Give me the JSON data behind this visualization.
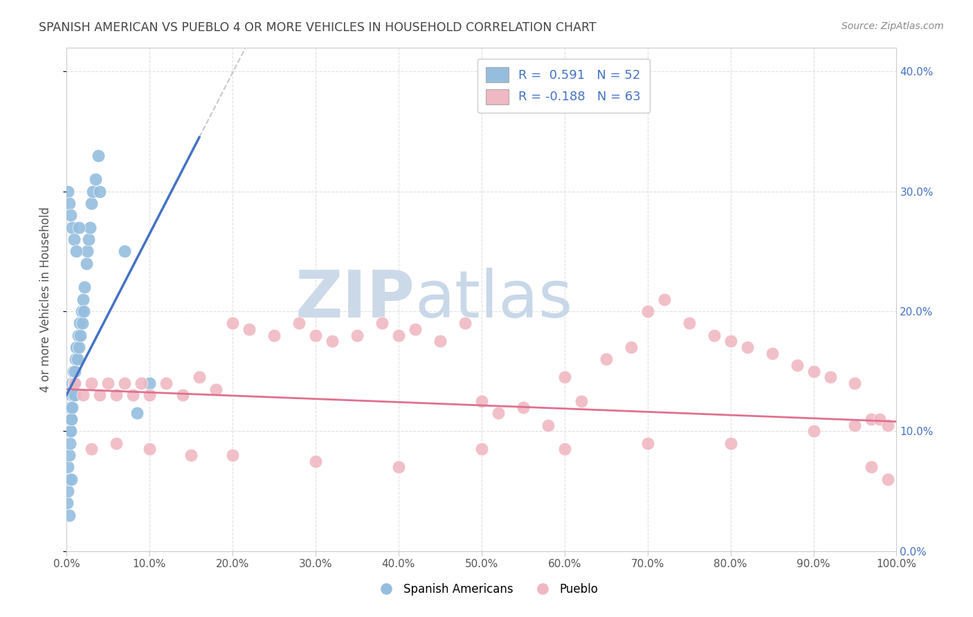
{
  "title": "SPANISH AMERICAN VS PUEBLO 4 OR MORE VEHICLES IN HOUSEHOLD CORRELATION CHART",
  "source": "Source: ZipAtlas.com",
  "ylabel": "4 or more Vehicles in Household",
  "xlim": [
    0,
    1.0
  ],
  "ylim": [
    0,
    0.42
  ],
  "xticks": [
    0.0,
    0.1,
    0.2,
    0.3,
    0.4,
    0.5,
    0.6,
    0.7,
    0.8,
    0.9,
    1.0
  ],
  "yticks": [
    0.0,
    0.1,
    0.2,
    0.3,
    0.4
  ],
  "blue_color": "#95bede",
  "pink_color": "#f0b8c2",
  "blue_line_color": "#4472c4",
  "pink_line_color": "#e07090",
  "dash_line_color": "#bbbbbb",
  "watermark_zip_color": "#ccd9e8",
  "watermark_atlas_color": "#c8d8e8",
  "legend_text_color": "#4472c4",
  "title_color": "#444444",
  "source_color": "#888888",
  "ylabel_color": "#555555",
  "grid_color": "#e0e0e0",
  "right_tick_color": "#4472c4",
  "blue_x": [
    0.001,
    0.002,
    0.002,
    0.003,
    0.003,
    0.004,
    0.004,
    0.005,
    0.005,
    0.005,
    0.006,
    0.006,
    0.007,
    0.007,
    0.008,
    0.008,
    0.009,
    0.01,
    0.01,
    0.011,
    0.012,
    0.013,
    0.014,
    0.015,
    0.016,
    0.017,
    0.018,
    0.019,
    0.02,
    0.021,
    0.022,
    0.024,
    0.025,
    0.027,
    0.028,
    0.03,
    0.032,
    0.035,
    0.038,
    0.04,
    0.002,
    0.003,
    0.005,
    0.007,
    0.009,
    0.012,
    0.015,
    0.07,
    0.085,
    0.1,
    0.003,
    0.006
  ],
  "blue_y": [
    0.04,
    0.05,
    0.07,
    0.06,
    0.08,
    0.09,
    0.1,
    0.1,
    0.11,
    0.12,
    0.11,
    0.13,
    0.12,
    0.14,
    0.13,
    0.15,
    0.14,
    0.13,
    0.15,
    0.16,
    0.17,
    0.16,
    0.18,
    0.17,
    0.19,
    0.18,
    0.2,
    0.19,
    0.21,
    0.2,
    0.22,
    0.24,
    0.25,
    0.26,
    0.27,
    0.29,
    0.3,
    0.31,
    0.33,
    0.3,
    0.3,
    0.29,
    0.28,
    0.27,
    0.26,
    0.25,
    0.27,
    0.25,
    0.115,
    0.14,
    0.03,
    0.06
  ],
  "pink_x": [
    0.01,
    0.02,
    0.03,
    0.04,
    0.05,
    0.06,
    0.07,
    0.08,
    0.09,
    0.1,
    0.12,
    0.14,
    0.16,
    0.18,
    0.2,
    0.22,
    0.25,
    0.28,
    0.3,
    0.32,
    0.35,
    0.38,
    0.4,
    0.42,
    0.45,
    0.48,
    0.5,
    0.52,
    0.55,
    0.58,
    0.6,
    0.62,
    0.65,
    0.68,
    0.7,
    0.72,
    0.75,
    0.78,
    0.8,
    0.82,
    0.85,
    0.88,
    0.9,
    0.92,
    0.95,
    0.97,
    0.98,
    0.99,
    0.03,
    0.06,
    0.1,
    0.15,
    0.2,
    0.3,
    0.4,
    0.5,
    0.6,
    0.7,
    0.8,
    0.9,
    0.95,
    0.97,
    0.99
  ],
  "pink_y": [
    0.14,
    0.13,
    0.14,
    0.13,
    0.14,
    0.13,
    0.14,
    0.13,
    0.14,
    0.13,
    0.14,
    0.13,
    0.145,
    0.135,
    0.19,
    0.185,
    0.18,
    0.19,
    0.18,
    0.175,
    0.18,
    0.19,
    0.18,
    0.185,
    0.175,
    0.19,
    0.125,
    0.115,
    0.12,
    0.105,
    0.145,
    0.125,
    0.16,
    0.17,
    0.2,
    0.21,
    0.19,
    0.18,
    0.175,
    0.17,
    0.165,
    0.155,
    0.15,
    0.145,
    0.14,
    0.11,
    0.11,
    0.105,
    0.085,
    0.09,
    0.085,
    0.08,
    0.08,
    0.075,
    0.07,
    0.085,
    0.085,
    0.09,
    0.09,
    0.1,
    0.105,
    0.07,
    0.06
  ]
}
